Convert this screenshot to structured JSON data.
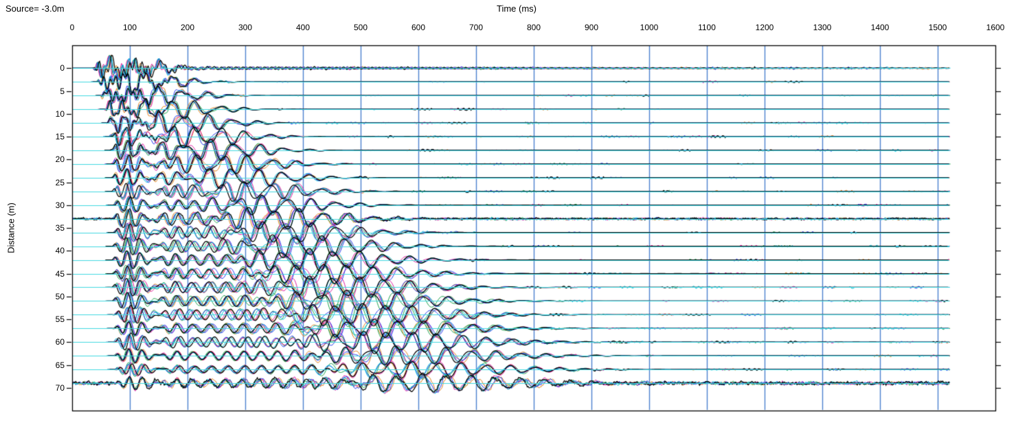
{
  "header": {
    "title": "Source= -3.0m"
  },
  "chart_data": {
    "type": "line",
    "subtype": "seismic-wiggle-shot-gather",
    "title": "Source= -3.0m",
    "xlabel": "Time (ms)",
    "ylabel": "Distance (m)",
    "xlim": [
      0,
      1600
    ],
    "ylim": [
      -5,
      75
    ],
    "x_ticks": [
      0,
      100,
      200,
      300,
      400,
      500,
      600,
      700,
      800,
      900,
      1000,
      1100,
      1200,
      1300,
      1400,
      1500,
      1600
    ],
    "y_ticks": [
      0,
      5,
      10,
      15,
      20,
      25,
      30,
      35,
      40,
      45,
      50,
      55,
      60,
      65,
      70
    ],
    "y_tick_step_m": 5,
    "record_length_ms": 1520,
    "trace_spacing_m": 3,
    "trace_count": 24,
    "trace_distances_m": [
      0,
      3,
      6,
      9,
      12,
      15,
      18,
      21,
      24,
      27,
      30,
      33,
      36,
      39,
      42,
      45,
      48,
      51,
      54,
      57,
      60,
      63,
      66,
      69
    ],
    "noisy_trace_distances_m": [
      33,
      69
    ],
    "grid": {
      "vertical_ms_start": 100,
      "vertical_ms_end": 1500,
      "vertical_ms_step": 100,
      "color": "#4a80cf",
      "horizontal": false
    },
    "colors": {
      "background": "#ffffff",
      "border": "#000000",
      "baseline": "#3fd9e1",
      "text": "#000000"
    },
    "overlay_shots": [
      {
        "name": "shot-1",
        "color": "#e2801a"
      },
      {
        "name": "shot-2",
        "color": "#18a24a"
      },
      {
        "name": "shot-3",
        "color": "#e016a0"
      },
      {
        "name": "shot-4",
        "color": "#2236ee"
      },
      {
        "name": "shot-5",
        "color": "#00c0d8"
      },
      {
        "name": "shot-6",
        "color": "#000000"
      }
    ],
    "traces": [
      {
        "d": 0,
        "t0": 38,
        "tc": 95,
        "amp": 10,
        "dash": 0.3,
        "hum": true,
        "noise": 0
      },
      {
        "d": 3,
        "t0": 46,
        "tc": 117,
        "amp": 11,
        "dash": 0.1,
        "hum": false,
        "noise": 0
      },
      {
        "d": 6,
        "t0": 53,
        "tc": 139,
        "amp": 12,
        "dash": 0.1,
        "hum": false,
        "noise": 0
      },
      {
        "d": 9,
        "t0": 59,
        "tc": 161,
        "amp": 13,
        "dash": 0.15,
        "hum": false,
        "noise": 0
      },
      {
        "d": 12,
        "t0": 64,
        "tc": 183,
        "amp": 13,
        "dash": 0.15,
        "hum": false,
        "noise": 0
      },
      {
        "d": 15,
        "t0": 67,
        "tc": 205,
        "amp": 13,
        "dash": 0.18,
        "hum": false,
        "noise": 0
      },
      {
        "d": 18,
        "t0": 69,
        "tc": 226,
        "amp": 14,
        "dash": 0.18,
        "hum": false,
        "noise": 0
      },
      {
        "d": 21,
        "t0": 70,
        "tc": 248,
        "amp": 14,
        "dash": 0.18,
        "hum": false,
        "noise": 0
      },
      {
        "d": 24,
        "t0": 70,
        "tc": 270,
        "amp": 14,
        "dash": 0.2,
        "hum": false,
        "noise": 0
      },
      {
        "d": 27,
        "t0": 71,
        "tc": 292,
        "amp": 15,
        "dash": 0.2,
        "hum": false,
        "noise": 0
      },
      {
        "d": 30,
        "t0": 71,
        "tc": 314,
        "amp": 15,
        "dash": 0.2,
        "hum": false,
        "noise": 0
      },
      {
        "d": 33,
        "t0": 71,
        "tc": 336,
        "amp": 15,
        "dash": 0.2,
        "hum": false,
        "noise": 1.6
      },
      {
        "d": 36,
        "t0": 71,
        "tc": 358,
        "amp": 16,
        "dash": 0.22,
        "hum": false,
        "noise": 0
      },
      {
        "d": 39,
        "t0": 72,
        "tc": 380,
        "amp": 16,
        "dash": 0.22,
        "hum": false,
        "noise": 0
      },
      {
        "d": 42,
        "t0": 72,
        "tc": 402,
        "amp": 16,
        "dash": 0.25,
        "hum": false,
        "noise": 0
      },
      {
        "d": 45,
        "t0": 72,
        "tc": 424,
        "amp": 16,
        "dash": 0.25,
        "hum": false,
        "noise": 0
      },
      {
        "d": 48,
        "t0": 72,
        "tc": 445,
        "amp": 16,
        "dash": 0.25,
        "hum": false,
        "noise": 0
      },
      {
        "d": 51,
        "t0": 72,
        "tc": 467,
        "amp": 16,
        "dash": 0.32,
        "hum": false,
        "noise": 0
      },
      {
        "d": 54,
        "t0": 73,
        "tc": 489,
        "amp": 15,
        "dash": 0.25,
        "hum": false,
        "noise": 0
      },
      {
        "d": 57,
        "t0": 73,
        "tc": 511,
        "amp": 15,
        "dash": 0.25,
        "hum": false,
        "noise": 0
      },
      {
        "d": 60,
        "t0": 73,
        "tc": 533,
        "amp": 15,
        "dash": 0.48,
        "hum": false,
        "noise": 0
      },
      {
        "d": 63,
        "t0": 73,
        "tc": 555,
        "amp": 13,
        "dash": 0.25,
        "hum": false,
        "noise": 0
      },
      {
        "d": 66,
        "t0": 74,
        "tc": 577,
        "amp": 12,
        "dash": 0.25,
        "hum": false,
        "noise": 0
      },
      {
        "d": 69,
        "t0": 74,
        "tc": 599,
        "amp": 12,
        "dash": 0.3,
        "hum": false,
        "noise": 2.6
      }
    ]
  }
}
